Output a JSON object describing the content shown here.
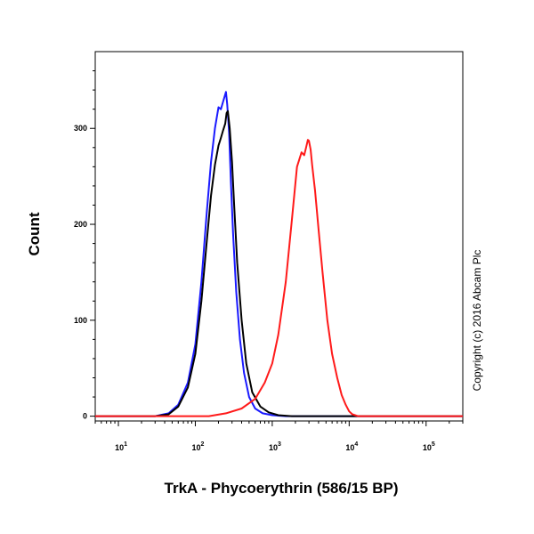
{
  "chart_data": {
    "type": "line",
    "xlabel": "TrkA - Phycoerythrin (586/15 BP)",
    "ylabel": "Count",
    "watermark": "Copyright (c) 2016 Abcam Plc",
    "x_scale": "log",
    "xlim": [
      5,
      300000
    ],
    "ylim": [
      -5,
      380
    ],
    "x_ticks": [
      {
        "value": 10,
        "base": "10",
        "exp": "1"
      },
      {
        "value": 100,
        "base": "10",
        "exp": "2"
      },
      {
        "value": 1000,
        "base": "10",
        "exp": "3"
      },
      {
        "value": 10000,
        "base": "10",
        "exp": "4"
      },
      {
        "value": 100000,
        "base": "10",
        "exp": "5"
      }
    ],
    "y_ticks": [
      {
        "value": 0,
        "label": "0"
      },
      {
        "value": 100,
        "label": "100"
      },
      {
        "value": 200,
        "label": "200"
      },
      {
        "value": 300,
        "label": "300"
      }
    ],
    "grid": false,
    "legend": "none",
    "series": [
      {
        "color": "#1a1aff",
        "x": [
          5,
          30,
          45,
          60,
          80,
          100,
          120,
          140,
          160,
          180,
          200,
          215,
          230,
          240,
          250,
          260,
          275,
          290,
          310,
          340,
          380,
          430,
          500,
          600,
          750,
          1000,
          1500,
          300000
        ],
        "y": [
          0,
          0,
          3,
          12,
          35,
          75,
          140,
          210,
          265,
          300,
          322,
          320,
          328,
          333,
          338,
          325,
          296,
          245,
          190,
          130,
          80,
          45,
          20,
          8,
          3,
          1,
          0,
          0
        ]
      },
      {
        "color": "#000000",
        "x": [
          5,
          30,
          45,
          60,
          80,
          100,
          120,
          140,
          160,
          180,
          200,
          215,
          230,
          245,
          255,
          265,
          280,
          300,
          320,
          350,
          400,
          460,
          550,
          700,
          900,
          1200,
          1800,
          300000
        ],
        "y": [
          0,
          0,
          2,
          10,
          30,
          65,
          120,
          180,
          230,
          262,
          282,
          290,
          298,
          305,
          316,
          318,
          300,
          265,
          220,
          160,
          100,
          55,
          25,
          10,
          4,
          1,
          0,
          0
        ]
      },
      {
        "color": "#ff1a1a",
        "x": [
          5,
          150,
          250,
          400,
          600,
          800,
          1000,
          1200,
          1500,
          1800,
          2100,
          2400,
          2600,
          2750,
          2900,
          3000,
          3150,
          3300,
          3600,
          4000,
          4500,
          5200,
          6000,
          7000,
          8000,
          9000,
          10000,
          11000,
          13000,
          300000
        ],
        "y": [
          0,
          0,
          3,
          8,
          18,
          35,
          55,
          85,
          140,
          205,
          260,
          275,
          272,
          280,
          288,
          287,
          278,
          262,
          235,
          195,
          150,
          100,
          65,
          40,
          22,
          12,
          5,
          2,
          0,
          0
        ]
      }
    ]
  }
}
